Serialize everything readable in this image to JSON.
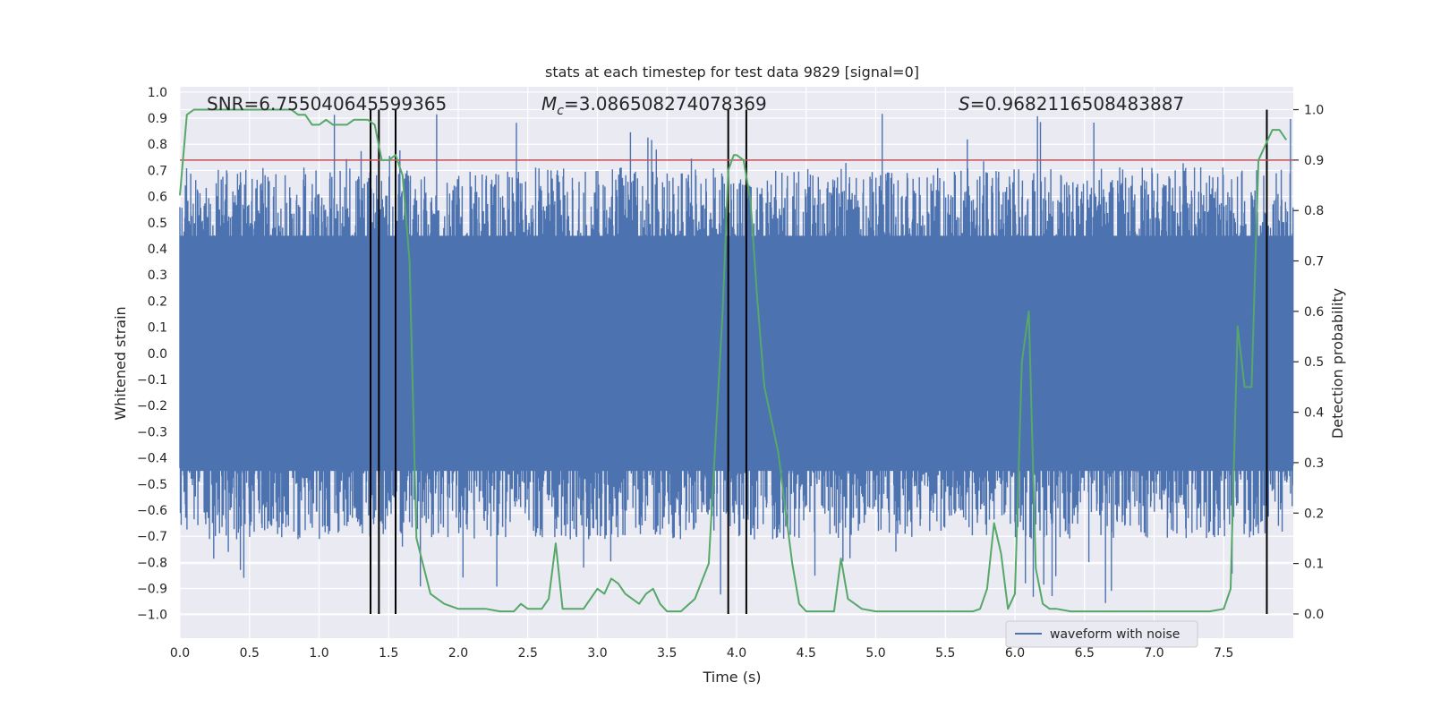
{
  "chart_data": {
    "type": "line",
    "title": "stats at each timestep for test data 9829 [signal=0]",
    "xlabel": "Time (s)",
    "ylabel": "Whitened strain",
    "y2label": "Detection probability",
    "xlim": [
      0.0,
      8.0
    ],
    "ylim": [
      -1.09,
      1.02
    ],
    "y2lim": [
      -0.048,
      1.0453
    ],
    "grid": true,
    "x_ticks": [
      "0.0",
      "0.5",
      "1.0",
      "1.5",
      "2.0",
      "2.5",
      "3.0",
      "3.5",
      "4.0",
      "4.5",
      "5.0",
      "5.5",
      "6.0",
      "6.5",
      "7.0",
      "7.5"
    ],
    "y_ticks": [
      "1.0",
      "0.9",
      "0.8",
      "0.7",
      "0.6",
      "0.5",
      "0.4",
      "0.3",
      "0.2",
      "0.1",
      "0.0",
      "−0.1",
      "−0.2",
      "−0.3",
      "−0.4",
      "−0.5",
      "−0.6",
      "−0.7",
      "−0.8",
      "−0.9",
      "−1.0"
    ],
    "y2_ticks": [
      "1.0",
      "0.9",
      "0.8",
      "0.7",
      "0.6",
      "0.5",
      "0.4",
      "0.3",
      "0.2",
      "0.1",
      "0.0"
    ],
    "annotations": {
      "snr": "SNR=6.755040645599365",
      "mc_symbol": "M",
      "mc_sub": "c",
      "mc_value": "=3.086508274078369",
      "s_symbol": "S",
      "s_value": "=0.9682116508483887"
    },
    "legend": {
      "label": "waveform with noise",
      "placement": "lower-right"
    },
    "colors": {
      "waveform": "#4c72b0",
      "probability": "#55a868",
      "threshold": "#c44e52",
      "event_lines": "#000000",
      "background": "#eaeaf2",
      "grid": "#ffffff"
    },
    "threshold": 0.9,
    "event_times": [
      1.37,
      1.43,
      1.55,
      3.94,
      4.07,
      7.81
    ],
    "waveform_band": {
      "core_low": -0.45,
      "core_high": 0.45,
      "typical_peak": 0.58,
      "min": -0.98,
      "max": 0.92
    },
    "probability_series": {
      "name": "",
      "x": [
        0.0,
        0.05,
        0.1,
        0.2,
        0.3,
        0.4,
        0.5,
        0.6,
        0.7,
        0.8,
        0.85,
        0.9,
        0.95,
        1.0,
        1.05,
        1.1,
        1.15,
        1.2,
        1.25,
        1.3,
        1.35,
        1.4,
        1.45,
        1.5,
        1.55,
        1.6,
        1.65,
        1.7,
        1.8,
        1.9,
        2.0,
        2.1,
        2.2,
        2.3,
        2.4,
        2.45,
        2.5,
        2.6,
        2.65,
        2.7,
        2.75,
        2.8,
        2.9,
        3.0,
        3.05,
        3.1,
        3.15,
        3.2,
        3.3,
        3.35,
        3.4,
        3.45,
        3.5,
        3.55,
        3.6,
        3.7,
        3.8,
        3.9,
        3.94,
        3.98,
        4.0,
        4.05,
        4.1,
        4.15,
        4.2,
        4.3,
        4.4,
        4.45,
        4.5,
        4.6,
        4.65,
        4.7,
        4.75,
        4.8,
        4.9,
        5.0,
        5.2,
        5.4,
        5.6,
        5.7,
        5.75,
        5.8,
        5.85,
        5.9,
        5.95,
        6.0,
        6.05,
        6.1,
        6.15,
        6.2,
        6.25,
        6.3,
        6.4,
        6.5,
        6.6,
        6.7,
        6.8,
        7.0,
        7.2,
        7.4,
        7.5,
        7.55,
        7.6,
        7.65,
        7.7,
        7.75,
        7.8,
        7.85,
        7.9,
        7.95
      ],
      "values": [
        0.83,
        0.99,
        1.0,
        1.0,
        1.0,
        1.0,
        1.0,
        1.0,
        1.0,
        1.0,
        0.99,
        0.99,
        0.97,
        0.97,
        0.98,
        0.97,
        0.97,
        0.97,
        0.98,
        0.98,
        0.98,
        0.97,
        0.9,
        0.9,
        0.91,
        0.87,
        0.7,
        0.15,
        0.04,
        0.02,
        0.01,
        0.01,
        0.01,
        0.005,
        0.005,
        0.02,
        0.01,
        0.01,
        0.03,
        0.14,
        0.01,
        0.01,
        0.01,
        0.05,
        0.04,
        0.07,
        0.06,
        0.04,
        0.02,
        0.04,
        0.05,
        0.02,
        0.005,
        0.005,
        0.005,
        0.03,
        0.1,
        0.6,
        0.88,
        0.91,
        0.91,
        0.9,
        0.82,
        0.62,
        0.45,
        0.32,
        0.1,
        0.02,
        0.005,
        0.005,
        0.005,
        0.005,
        0.11,
        0.03,
        0.01,
        0.005,
        0.005,
        0.005,
        0.005,
        0.005,
        0.01,
        0.05,
        0.18,
        0.12,
        0.01,
        0.04,
        0.5,
        0.6,
        0.09,
        0.02,
        0.01,
        0.01,
        0.005,
        0.005,
        0.005,
        0.005,
        0.005,
        0.005,
        0.005,
        0.005,
        0.01,
        0.05,
        0.57,
        0.45,
        0.45,
        0.9,
        0.93,
        0.96,
        0.96,
        0.94
      ]
    }
  }
}
